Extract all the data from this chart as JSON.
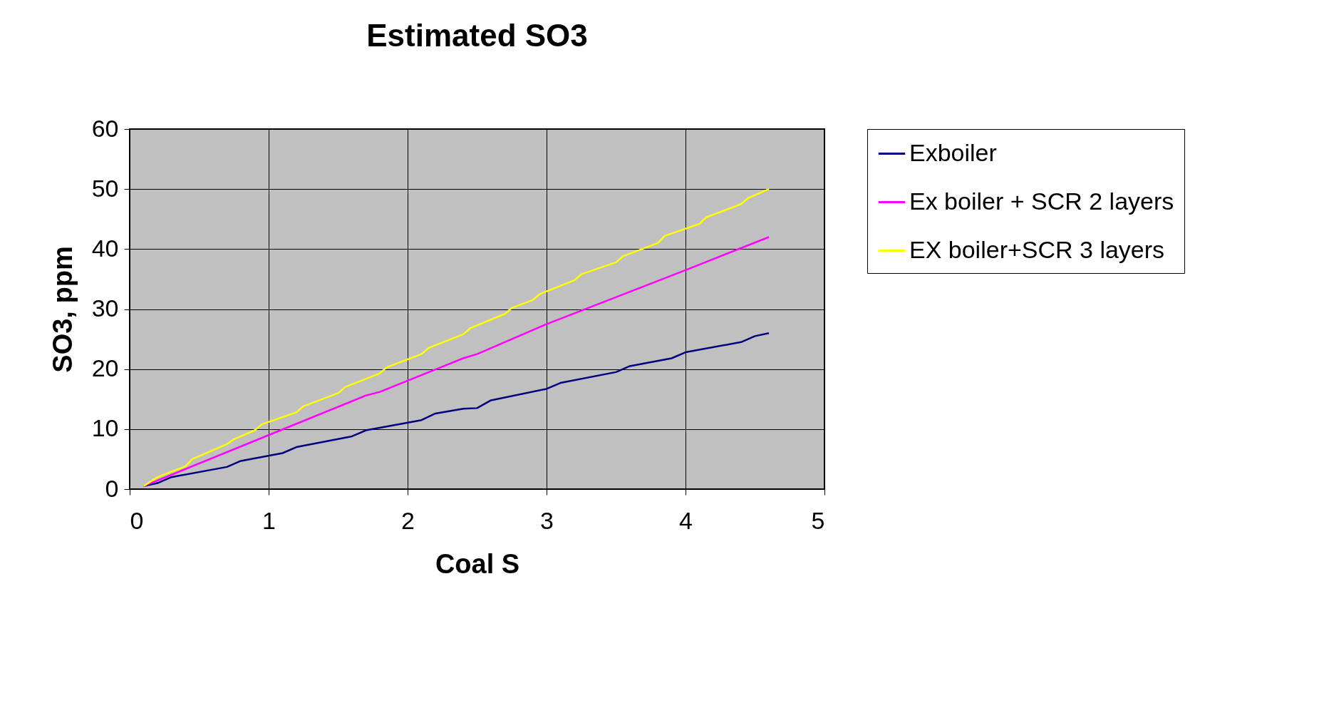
{
  "chart_data": {
    "type": "line",
    "title": "Estimated SO3",
    "xlabel": "Coal S",
    "ylabel": "SO3, ppm",
    "xlim": [
      0,
      5
    ],
    "xticks": [
      0,
      1,
      2,
      3,
      4,
      5
    ],
    "ylim": [
      0,
      60
    ],
    "yticks": [
      0,
      10,
      20,
      30,
      40,
      50,
      60
    ],
    "grid": true,
    "legend": "right",
    "marker": "none",
    "line_style": "solid",
    "series": [
      {
        "name": "Exboiler",
        "color": "#000080",
        "x": [
          0.1,
          0.2,
          0.3,
          0.7,
          0.8,
          1.1,
          1.2,
          1.6,
          1.7,
          2.1,
          2.2,
          2.4,
          2.5,
          2.6,
          3.0,
          3.1,
          3.5,
          3.6,
          3.9,
          4.0,
          4.4,
          4.5,
          4.6
        ],
        "values": [
          0.5,
          1,
          2,
          3.7,
          4.7,
          6,
          7,
          8.8,
          9.8,
          11.5,
          12.6,
          13.4,
          13.5,
          14.8,
          16.7,
          17.7,
          19.5,
          20.5,
          21.8,
          22.8,
          24.5,
          25.5,
          26
        ]
      },
      {
        "name": "Ex boiler + SCR 2 layers",
        "color": "#ff00ff",
        "x": [
          0.1,
          1.0,
          1.7,
          1.8,
          2.4,
          2.5,
          3.0,
          4.0,
          4.6
        ],
        "values": [
          0.5,
          9,
          15.6,
          16.2,
          21.8,
          22.5,
          27.5,
          36.5,
          42
        ]
      },
      {
        "name": "EX boiler+SCR  3 layers",
        "color": "#ffff00",
        "x": [
          0.1,
          0.2,
          0.4,
          0.45,
          0.7,
          0.75,
          0.9,
          0.95,
          1.2,
          1.25,
          1.5,
          1.55,
          1.8,
          1.85,
          2.1,
          2.15,
          2.4,
          2.45,
          2.7,
          2.75,
          2.9,
          2.95,
          3.2,
          3.25,
          3.5,
          3.55,
          3.8,
          3.85,
          4.1,
          4.15,
          4.4,
          4.45,
          4.6
        ],
        "values": [
          0.5,
          2,
          3.8,
          5,
          7.5,
          8.3,
          9.8,
          10.8,
          12.8,
          13.8,
          16,
          17,
          19.3,
          20.3,
          22.5,
          23.5,
          25.8,
          26.8,
          29.2,
          30.2,
          31.5,
          32.5,
          34.8,
          35.8,
          37.8,
          38.8,
          41,
          42.2,
          44.2,
          45.3,
          47.5,
          48.5,
          50
        ]
      }
    ]
  }
}
